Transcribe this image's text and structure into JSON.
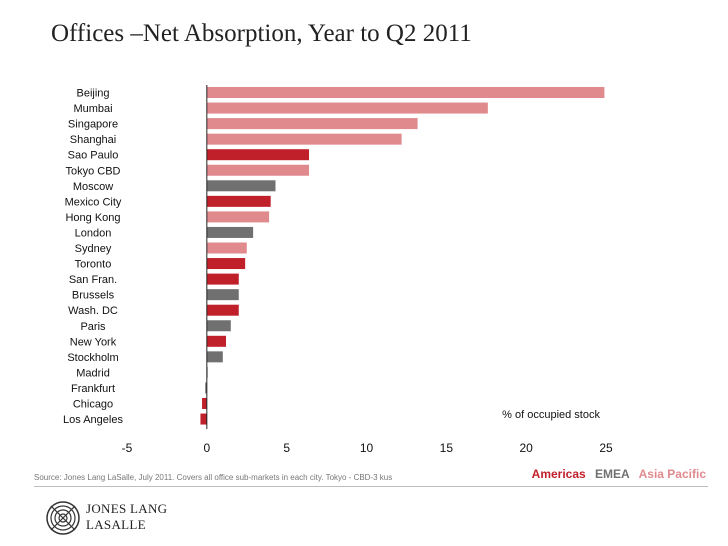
{
  "title": "Offices –Net Absorption, Year to Q2 2011",
  "chart_data": {
    "type": "bar",
    "orientation": "horizontal",
    "categories": [
      "Beijing",
      "Mumbai",
      "Singapore",
      "Shanghai",
      "Sao Paulo",
      "Tokyo CBD",
      "Moscow",
      "Mexico City",
      "Hong Kong",
      "London",
      "Sydney",
      "Toronto",
      "San Fran.",
      "Brussels",
      "Wash. DC",
      "Paris",
      "New York",
      "Stockholm",
      "Madrid",
      "Frankfurt",
      "Chicago",
      "Los Angeles"
    ],
    "values": [
      24.9,
      17.6,
      13.2,
      12.2,
      6.4,
      6.4,
      4.3,
      4.0,
      3.9,
      2.9,
      2.5,
      2.4,
      2.0,
      2.0,
      2.0,
      1.5,
      1.2,
      1.0,
      0.0,
      -0.1,
      -0.3,
      -0.4
    ],
    "regions": [
      "Asia Pacific",
      "Asia Pacific",
      "Asia Pacific",
      "Asia Pacific",
      "Americas",
      "Asia Pacific",
      "EMEA",
      "Americas",
      "Asia Pacific",
      "EMEA",
      "Asia Pacific",
      "Americas",
      "Americas",
      "EMEA",
      "Americas",
      "EMEA",
      "Americas",
      "EMEA",
      "EMEA",
      "EMEA",
      "Americas",
      "Americas"
    ],
    "xlim": [
      -5,
      25
    ],
    "xticks": [
      -5,
      0,
      5,
      10,
      15,
      20,
      25
    ],
    "xlabel": "% of occupied stock",
    "grid": false,
    "legend_placement": "bottom-right",
    "colors": {
      "Americas": "#c0202a",
      "EMEA": "#707070",
      "Asia Pacific": "#e08a8e"
    }
  },
  "source": "Source: Jones Lang LaSalle,  July 2011.  Covers all office sub-markets in each city. Tokyo - CBD-3 kus",
  "legend": {
    "americas": "Americas",
    "emea": "EMEA",
    "asia_pacific": "Asia Pacific"
  },
  "logo": {
    "line1": "JONES LANG",
    "line2": "LASALLE"
  }
}
